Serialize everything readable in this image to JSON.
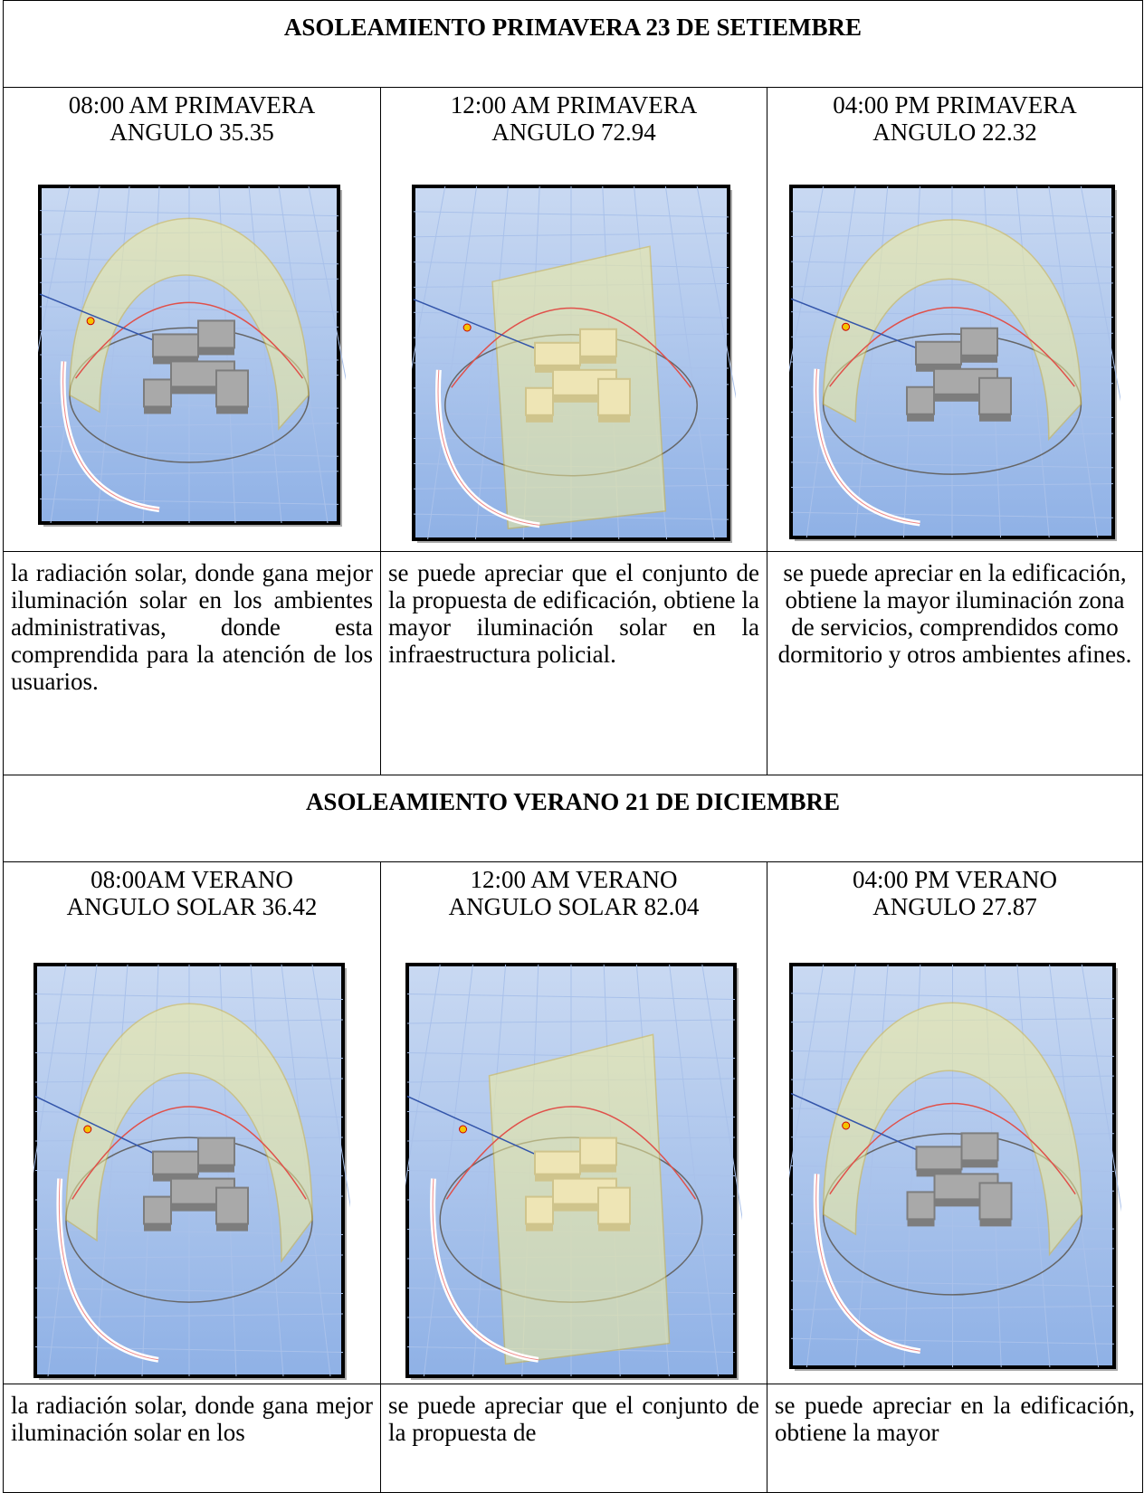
{
  "sections": [
    {
      "title": "ASOLEAMIENTO PRIMAVERA 23 DE SETIEMBRE",
      "cells": [
        {
          "heading": [
            "08:00 AM PRIMAVERA",
            "ANGULO 35.35"
          ],
          "description": "la radiación solar, donde gana mejor iluminación solar en los ambientes administrativas, donde esta comprendida para la atención de los usuarios."
        },
        {
          "heading": [
            "12:00 AM PRIMAVERA",
            "ANGULO 72.94"
          ],
          "description": "se puede apreciar que el conjunto de la propuesta de edificación, obtiene la mayor iluminación solar en la infraestructura policial."
        },
        {
          "heading": [
            "04:00 PM PRIMAVERA",
            "ANGULO 22.32"
          ],
          "description": "se puede apreciar en la edificación, obtiene la mayor iluminación zona de servicios, comprendidos como dormitorio y otros ambientes afines."
        }
      ]
    },
    {
      "title": "ASOLEAMIENTO VERANO 21 DE DICIEMBRE",
      "cells": [
        {
          "heading": [
            "08:00AM VERANO",
            "ANGULO SOLAR 36.42"
          ],
          "description": "la radiación solar, donde gana mejor iluminación solar en los"
        },
        {
          "heading": [
            "12:00 AM VERANO",
            "ANGULO SOLAR 82.04"
          ],
          "description": "se puede apreciar que el conjunto de la propuesta de"
        },
        {
          "heading": [
            "04:00 PM VERANO",
            "ANGULO 27.87"
          ],
          "description": "se puede apreciar en la edificación, obtiene la mayor"
        }
      ]
    }
  ]
}
